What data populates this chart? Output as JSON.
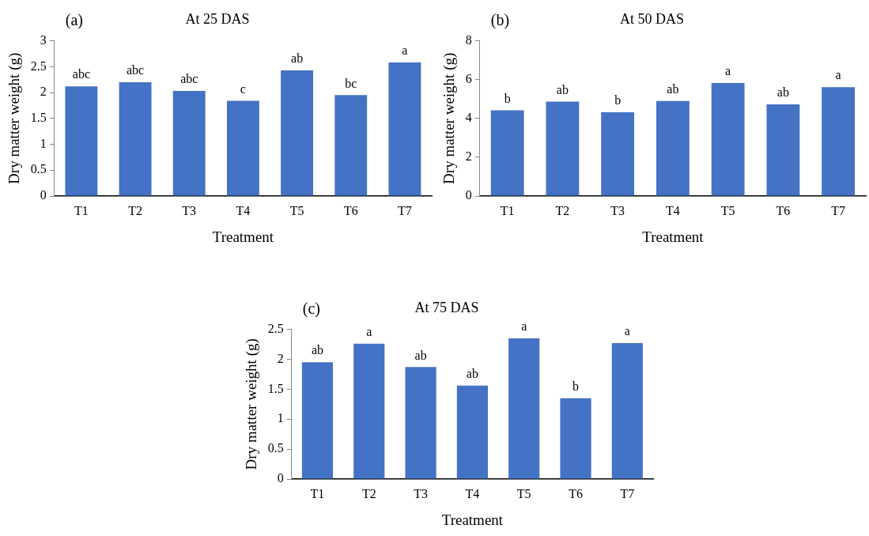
{
  "chart_data": [
    {
      "type": "bar",
      "title": "At 25 DAS",
      "xlabel": "Treatment",
      "ylabel": "Dry matter weight (g)",
      "categories": [
        "T1",
        "T2",
        "T3",
        "T4",
        "T5",
        "T6",
        "T7"
      ],
      "values": [
        2.12,
        2.2,
        2.03,
        1.84,
        2.43,
        1.95,
        2.58
      ],
      "color": "#4472c4",
      "ylim": [
        0,
        3
      ],
      "yticks": [
        0,
        0.5,
        1,
        1.5,
        2,
        2.5,
        3
      ],
      "grid": false,
      "legend": false,
      "annotations": [
        "(a)",
        {
          "text": "abc",
          "x": "T1",
          "y": 2.12
        },
        {
          "text": "abc",
          "x": "T2",
          "y": 2.2
        },
        {
          "text": "abc",
          "x": "T3",
          "y": 2.03
        },
        {
          "text": "c",
          "x": "T4",
          "y": 1.84
        },
        {
          "text": "ab",
          "x": "T5",
          "y": 2.43
        },
        {
          "text": "bc",
          "x": "T6",
          "y": 1.95
        },
        {
          "text": "a",
          "x": "T7",
          "y": 2.58
        }
      ]
    },
    {
      "type": "bar",
      "title": "At 50 DAS",
      "xlabel": "Treatment",
      "ylabel": "Dry matter weight (g)",
      "categories": [
        "T1",
        "T2",
        "T3",
        "T4",
        "T5",
        "T6",
        "T7"
      ],
      "values": [
        4.42,
        4.87,
        4.32,
        4.9,
        5.82,
        4.73,
        5.61
      ],
      "color": "#4472c4",
      "ylim": [
        0,
        8
      ],
      "yticks": [
        0,
        2,
        4,
        6,
        8
      ],
      "grid": false,
      "legend": false,
      "annotations": [
        "(b)",
        {
          "text": "b",
          "x": "T1",
          "y": 4.42
        },
        {
          "text": "ab",
          "x": "T2",
          "y": 4.87
        },
        {
          "text": "b",
          "x": "T3",
          "y": 4.32
        },
        {
          "text": "ab",
          "x": "T4",
          "y": 4.9
        },
        {
          "text": "a",
          "x": "T5",
          "y": 5.82
        },
        {
          "text": "ab",
          "x": "T6",
          "y": 4.73
        },
        {
          "text": "a",
          "x": "T7",
          "y": 5.61
        }
      ]
    },
    {
      "type": "bar",
      "title": "At 75 DAS",
      "xlabel": "Treatment",
      "ylabel": "Dry matter weight (g)",
      "categories": [
        "T1",
        "T2",
        "T3",
        "T4",
        "T5",
        "T6",
        "T7"
      ],
      "values": [
        1.95,
        2.26,
        1.87,
        1.56,
        2.35,
        1.35,
        2.27
      ],
      "color": "#4472c4",
      "ylim": [
        0,
        2.5
      ],
      "yticks": [
        0,
        0.5,
        1,
        1.5,
        2,
        2.5
      ],
      "grid": false,
      "legend": false,
      "annotations": [
        "(c)",
        {
          "text": "ab",
          "x": "T1",
          "y": 1.95
        },
        {
          "text": "a",
          "x": "T2",
          "y": 2.26
        },
        {
          "text": "ab",
          "x": "T3",
          "y": 1.87
        },
        {
          "text": "ab",
          "x": "T4",
          "y": 1.56
        },
        {
          "text": "a",
          "x": "T5",
          "y": 2.35
        },
        {
          "text": "b",
          "x": "T6",
          "y": 1.35
        },
        {
          "text": "a",
          "x": "T7",
          "y": 2.27
        }
      ]
    }
  ]
}
